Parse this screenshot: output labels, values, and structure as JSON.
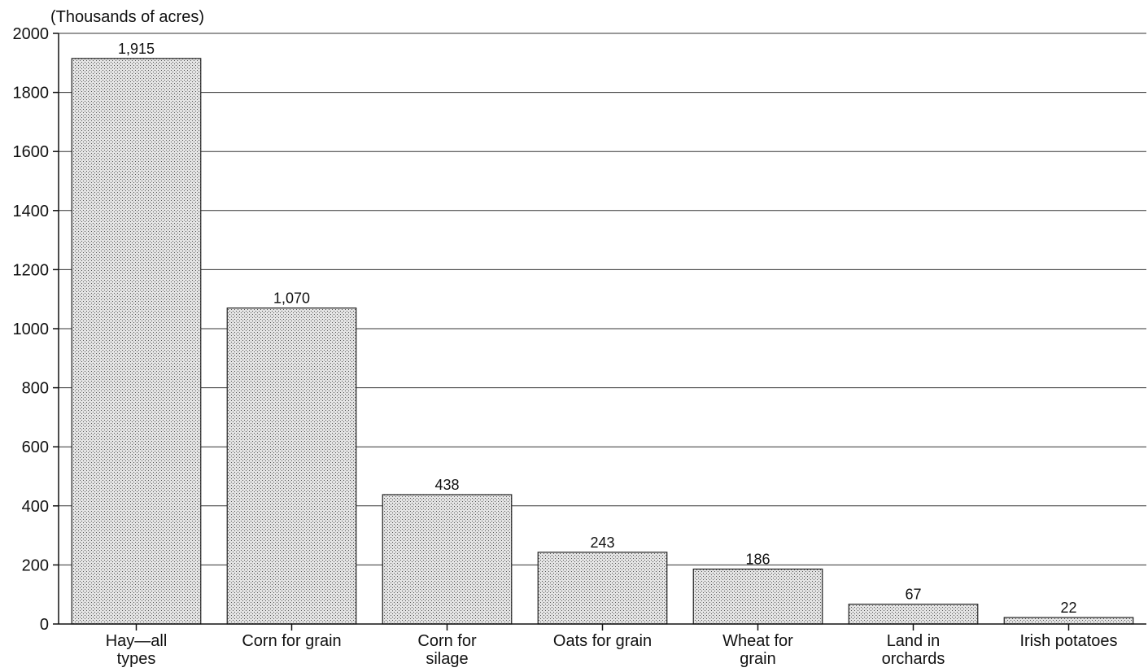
{
  "chart_data": {
    "type": "bar",
    "unit_label": "(Thousands of acres)",
    "title": "",
    "xlabel": "",
    "ylabel": "",
    "categories": [
      [
        "Hay—all",
        "types"
      ],
      [
        "Corn for grain"
      ],
      [
        "Corn for",
        "silage"
      ],
      [
        "Oats for grain"
      ],
      [
        "Wheat for",
        "grain"
      ],
      [
        "Land in",
        "orchards"
      ],
      [
        "Irish potatoes"
      ]
    ],
    "values": [
      1915,
      1070,
      438,
      243,
      186,
      67,
      22
    ],
    "value_labels": [
      "1,915",
      "1,070",
      "438",
      "243",
      "186",
      "67",
      "22"
    ],
    "ylim": [
      0,
      2000
    ],
    "yticks": [
      0,
      200,
      400,
      600,
      800,
      1000,
      1200,
      1400,
      1600,
      1800,
      2000
    ],
    "grid": true,
    "bar_fill": "#c8c8c8",
    "bar_stroke": "#222222",
    "grid_color": "#333333"
  }
}
